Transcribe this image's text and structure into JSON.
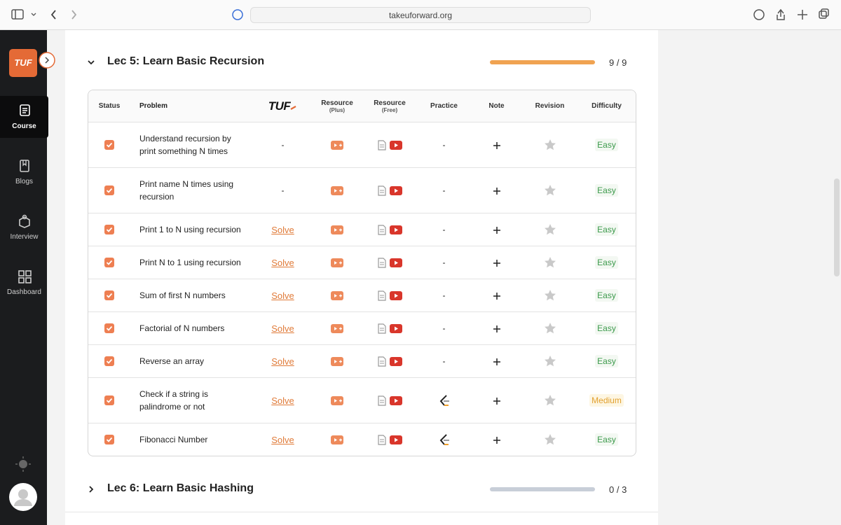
{
  "browser": {
    "url": "takeuforward.org"
  },
  "sidebar": {
    "logo": "TUF",
    "items": [
      "Course",
      "Blogs",
      "Interview",
      "Dashboard"
    ]
  },
  "table_header": {
    "status": "Status",
    "problem": "Problem",
    "tuf": "TUF",
    "plus": [
      "Resource",
      "(Plus)"
    ],
    "free": [
      "Resource",
      "(Free)"
    ],
    "practice": "Practice",
    "note": "Note",
    "revision": "Revision",
    "difficulty": "Difficulty"
  },
  "lectures": [
    {
      "title": "Lec 5: Learn Basic Recursion",
      "progress": {
        "done": 9,
        "total": 9,
        "label": "9 / 9"
      },
      "rows": [
        {
          "problem": "Understand recursion by print something N times",
          "tuf": "-",
          "practice": "-",
          "difficulty": "Easy"
        },
        {
          "problem": "Print name N times using recursion",
          "tuf": "-",
          "practice": "-",
          "difficulty": "Easy"
        },
        {
          "problem": "Print 1 to N using recursion",
          "tuf": "Solve",
          "practice": "-",
          "difficulty": "Easy"
        },
        {
          "problem": "Print N to 1 using recursion",
          "tuf": "Solve",
          "practice": "-",
          "difficulty": "Easy"
        },
        {
          "problem": "Sum of first N numbers",
          "tuf": "Solve",
          "practice": "-",
          "difficulty": "Easy"
        },
        {
          "problem": "Factorial of N numbers",
          "tuf": "Solve",
          "practice": "-",
          "difficulty": "Easy"
        },
        {
          "problem": "Reverse an array",
          "tuf": "Solve",
          "practice": "-",
          "difficulty": "Easy"
        },
        {
          "problem": "Check if a string is palindrome or not",
          "tuf": "Solve",
          "difficulty": "Medium"
        },
        {
          "problem": "Fibonacci Number",
          "tuf": "Solve",
          "difficulty": "Easy"
        }
      ]
    },
    {
      "title": "Lec 6: Learn Basic Hashing",
      "progress": {
        "done": 0,
        "total": 3,
        "label": "0 / 3"
      }
    }
  ]
}
